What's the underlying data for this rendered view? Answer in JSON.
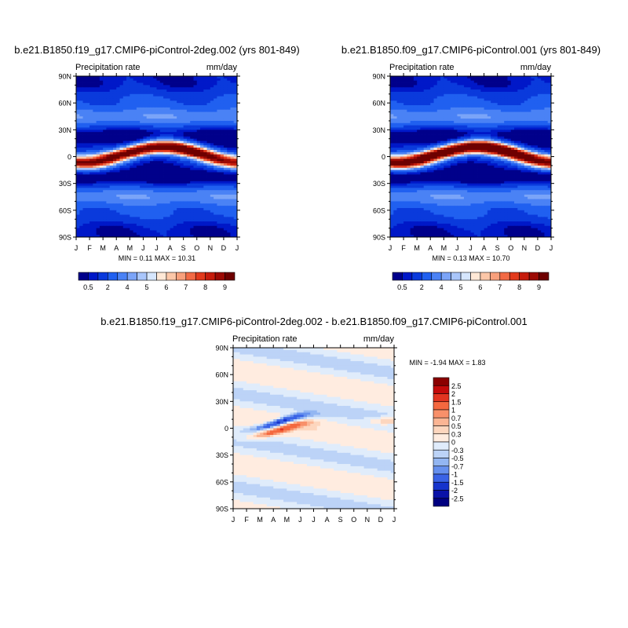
{
  "chart_data": [
    {
      "type": "heatmap",
      "title": "b.e21.B1850.f19_g17.CMIP6-piControl-2deg.002 (yrs 801-849)",
      "left_label": "Precipitation rate",
      "right_label": "mm/day",
      "x_tick_labels": [
        "J",
        "F",
        "M",
        "A",
        "M",
        "J",
        "J",
        "A",
        "S",
        "O",
        "N",
        "D",
        "J"
      ],
      "y_tick_labels": [
        "90N",
        "60N",
        "30N",
        "0",
        "30S",
        "60S",
        "90S"
      ],
      "stats": "MIN =   0.11 MAX =  10.31",
      "colorbar_labels": [
        "0.5",
        "2",
        "4",
        "5",
        "6",
        "7",
        "8",
        "9"
      ],
      "colorbar_colors": [
        "#00008b",
        "#0018c8",
        "#0a3adc",
        "#2060f0",
        "#4a82f5",
        "#7ba4f8",
        "#a9c6fb",
        "#d6e6fd",
        "#ffe8d6",
        "#fcc7a8",
        "#f8a07c",
        "#f26a45",
        "#e23a1c",
        "#c61c0c",
        "#9c0a04",
        "#6e0000"
      ]
    },
    {
      "type": "heatmap",
      "title": "b.e21.B1850.f09_g17.CMIP6-piControl.001 (yrs 801-849)",
      "left_label": "Precipitation rate",
      "right_label": "mm/day",
      "x_tick_labels": [
        "J",
        "F",
        "M",
        "A",
        "M",
        "J",
        "J",
        "A",
        "S",
        "O",
        "N",
        "D",
        "J"
      ],
      "y_tick_labels": [
        "90N",
        "60N",
        "30N",
        "0",
        "30S",
        "60S",
        "90S"
      ],
      "stats": "MIN =   0.13 MAX =  10.70",
      "colorbar_labels": [
        "0.5",
        "2",
        "4",
        "5",
        "6",
        "7",
        "8",
        "9"
      ],
      "colorbar_colors": [
        "#00008b",
        "#0018c8",
        "#0a3adc",
        "#2060f0",
        "#4a82f5",
        "#7ba4f8",
        "#a9c6fb",
        "#d6e6fd",
        "#ffe8d6",
        "#fcc7a8",
        "#f8a07c",
        "#f26a45",
        "#e23a1c",
        "#c61c0c",
        "#9c0a04",
        "#6e0000"
      ]
    },
    {
      "type": "heatmap",
      "title": "b.e21.B1850.f19_g17.CMIP6-piControl-2deg.002 - b.e21.B1850.f09_g17.CMIP6-piControl.001",
      "left_label": "Precipitation rate",
      "right_label": "mm/day",
      "x_tick_labels": [
        "J",
        "F",
        "M",
        "A",
        "M",
        "J",
        "J",
        "A",
        "S",
        "O",
        "N",
        "D",
        "J"
      ],
      "y_tick_labels": [
        "90N",
        "60N",
        "30N",
        "0",
        "30S",
        "60S",
        "90S"
      ],
      "stats": "MIN =  -1.94 MAX =   1.83",
      "colorbar_labels": [
        "2.5",
        "2",
        "1.5",
        "1",
        "0.7",
        "0.5",
        "0.3",
        "0",
        "-0.3",
        "-0.5",
        "-0.7",
        "-1",
        "-1.5",
        "-2",
        "-2.5"
      ],
      "colorbar_colors": [
        "#8b0000",
        "#c40a0a",
        "#e23420",
        "#f4683f",
        "#f8906a",
        "#fbb594",
        "#fdd6be",
        "#ffece0",
        "#e0ecfb",
        "#bcd3f7",
        "#93b6f2",
        "#6690ee",
        "#3a63e6",
        "#1634cc",
        "#0a12a8",
        "#000080"
      ]
    }
  ]
}
